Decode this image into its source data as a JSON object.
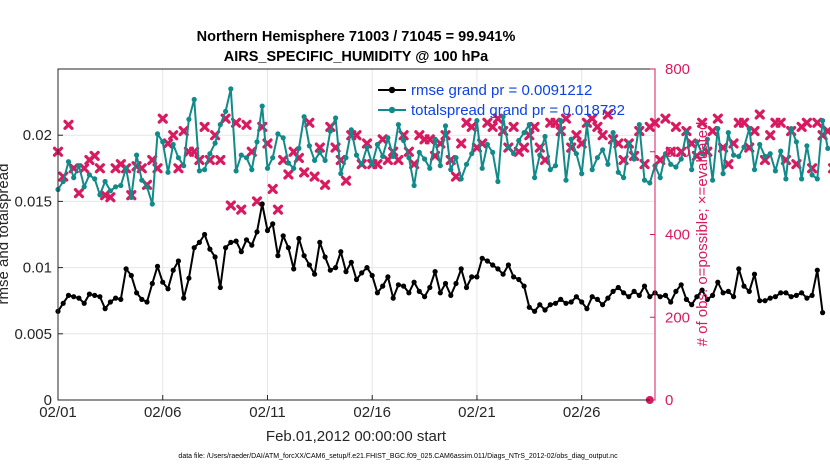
{
  "chart_data": {
    "type": "line",
    "title": "Northern Hemisphere 71003 / 71045 = 99.941%",
    "subtitle": "AIRS_SPECIFIC_HUMIDITY @ 100 hPa",
    "xlabel": "Feb.01,2012 00:00:00 start",
    "ylabel": "rmse and totalspread",
    "ylabel_right": "# of obs: o=possible; ×=evaluated",
    "footer": "data file: /Users/raeder/DAI/ATM_forcXX/CAM6_setup/f.e21.FHIST_BGC.f09_025.CAM6assim.011/Diags_NTrS_2012-02/obs_diag_output.nc",
    "xlim": [
      0,
      28.5
    ],
    "ylim": [
      0,
      0.025
    ],
    "ylim_right": [
      0,
      800
    ],
    "x_ticks": [
      0,
      5,
      10,
      15,
      20,
      25
    ],
    "x_tick_labels": [
      "02/01",
      "02/06",
      "02/11",
      "02/16",
      "02/21",
      "02/26"
    ],
    "y_ticks": [
      0,
      0.005,
      0.01,
      0.015,
      0.02
    ],
    "y_tick_labels": [
      "0",
      "0.005",
      "0.01",
      "0.015",
      "0.02"
    ],
    "y_right_ticks": [
      0,
      200,
      400,
      600,
      800
    ],
    "y_right_tick_labels": [
      "0",
      "200",
      "400",
      "600",
      "800"
    ],
    "series": [
      {
        "name": "rmse grand pr = 0.0091212",
        "color": "#000000",
        "marker": "circle",
        "axis": "left",
        "x_start": 0,
        "x_step": 0.25,
        "values": [
          0.0067,
          0.0073,
          0.0079,
          0.0078,
          0.0077,
          0.0073,
          0.008,
          0.0079,
          0.0078,
          0.0069,
          0.0074,
          0.0077,
          0.0076,
          0.0099,
          0.0094,
          0.0081,
          0.0076,
          0.0074,
          0.0088,
          0.0101,
          0.0089,
          0.0084,
          0.0098,
          0.0105,
          0.0077,
          0.0092,
          0.0115,
          0.0119,
          0.0125,
          0.0114,
          0.0108,
          0.0085,
          0.0115,
          0.0119,
          0.012,
          0.0112,
          0.0121,
          0.0117,
          0.0127,
          0.0148,
          0.0128,
          0.0133,
          0.0109,
          0.0124,
          0.0115,
          0.0099,
          0.0122,
          0.0109,
          0.0102,
          0.0095,
          0.0119,
          0.0108,
          0.0098,
          0.01,
          0.0112,
          0.0097,
          0.0104,
          0.0091,
          0.0096,
          0.01,
          0.0094,
          0.0081,
          0.0086,
          0.0093,
          0.0077,
          0.0087,
          0.0086,
          0.0081,
          0.0089,
          0.0082,
          0.0078,
          0.0085,
          0.0097,
          0.0081,
          0.0088,
          0.0079,
          0.0088,
          0.0099,
          0.0085,
          0.0093,
          0.0093,
          0.0107,
          0.0105,
          0.0102,
          0.0099,
          0.0095,
          0.0102,
          0.0093,
          0.0091,
          0.0086,
          0.007,
          0.0067,
          0.0072,
          0.0068,
          0.0072,
          0.0073,
          0.0076,
          0.0073,
          0.0074,
          0.0078,
          0.0074,
          0.0069,
          0.0078,
          0.0076,
          0.0072,
          0.0077,
          0.0082,
          0.0085,
          0.0081,
          0.0078,
          0.0082,
          0.0079,
          0.0086,
          0.0078,
          0.0081,
          0.0078,
          0.0079,
          0.0074,
          0.0082,
          0.0087,
          0.0076,
          0.0072,
          0.0078,
          0.0083,
          0.0076,
          0.0079,
          0.0089,
          0.0081,
          0.0082,
          0.0078,
          0.0099,
          0.0086,
          0.0082,
          0.0095,
          0.0075,
          0.0075,
          0.0077,
          0.0078,
          0.0081,
          0.0081,
          0.0078,
          0.0079,
          0.0081,
          0.0077,
          0.0079,
          0.0098,
          0.0066
        ]
      },
      {
        "name": "totalspread grand pr = 0.018732",
        "color": "#138a8a",
        "marker": "circle",
        "axis": "left",
        "x_start": 0,
        "x_step": 0.25,
        "values": [
          0.0159,
          0.0165,
          0.018,
          0.0168,
          0.0177,
          0.0161,
          0.017,
          0.0167,
          0.0155,
          0.0165,
          0.0158,
          0.0161,
          0.0162,
          0.0175,
          0.0153,
          0.0185,
          0.0166,
          0.0161,
          0.0148,
          0.0201,
          0.0195,
          0.0172,
          0.0193,
          0.0183,
          0.0177,
          0.0212,
          0.0227,
          0.0173,
          0.0174,
          0.0186,
          0.0194,
          0.0208,
          0.0218,
          0.0235,
          0.0173,
          0.0185,
          0.0183,
          0.0174,
          0.0195,
          0.0222,
          0.0175,
          0.0183,
          0.0201,
          0.0198,
          0.0179,
          0.0175,
          0.019,
          0.0214,
          0.0192,
          0.0181,
          0.0187,
          0.0181,
          0.0203,
          0.0213,
          0.0171,
          0.0183,
          0.0204,
          0.0185,
          0.0178,
          0.0191,
          0.0178,
          0.0193,
          0.0184,
          0.0198,
          0.0184,
          0.0208,
          0.0196,
          0.0183,
          0.0162,
          0.0187,
          0.0182,
          0.0175,
          0.0197,
          0.0177,
          0.0207,
          0.0174,
          0.0183,
          0.0167,
          0.0178,
          0.0186,
          0.0211,
          0.0175,
          0.0193,
          0.0187,
          0.0165,
          0.0214,
          0.0191,
          0.0186,
          0.0196,
          0.0202,
          0.0208,
          0.0168,
          0.0185,
          0.0199,
          0.0174,
          0.0177,
          0.0211,
          0.0166,
          0.0197,
          0.0186,
          0.0171,
          0.0208,
          0.0174,
          0.0183,
          0.0189,
          0.0178,
          0.0202,
          0.0172,
          0.0168,
          0.0194,
          0.0182,
          0.0208,
          0.0166,
          0.0164,
          0.0177,
          0.0168,
          0.0186,
          0.0178,
          0.0176,
          0.0182,
          0.0202,
          0.0174,
          0.0195,
          0.0186,
          0.0197,
          0.0166,
          0.0205,
          0.0171,
          0.0202,
          0.0185,
          0.0184,
          0.0191,
          0.0205,
          0.0174,
          0.0193,
          0.0184,
          0.0186,
          0.0173,
          0.0188,
          0.0167,
          0.0205,
          0.0195,
          0.0167,
          0.0192,
          0.017,
          0.0167,
          0.0211,
          0.019
        ]
      }
    ],
    "obs_evaluated": {
      "name": "# evaluated",
      "color": "#d81b60",
      "marker": "x",
      "axis": "right",
      "x_start": 0,
      "x_step": 0.25,
      "values": [
        600,
        540,
        665,
        560,
        500,
        560,
        580,
        590,
        560,
        495,
        490,
        560,
        570,
        560,
        495,
        565,
        560,
        520,
        580,
        560,
        680,
        620,
        640,
        560,
        650,
        600,
        600,
        580,
        660,
        580,
        640,
        580,
        680,
        470,
        670,
        460,
        665,
        600,
        480,
        660,
        620,
        510,
        460,
        580,
        545,
        600,
        585,
        550,
        670,
        540,
        610,
        520,
        660,
        610,
        580,
        530,
        640,
        640,
        570,
        620,
        570,
        570,
        630,
        580,
        600,
        580,
        640,
        600,
        570,
        640,
        630,
        630,
        590,
        620,
        640,
        580,
        540,
        620,
        670,
        660,
        610,
        620,
        670,
        660,
        680,
        650,
        610,
        660,
        600,
        610,
        640,
        660,
        610,
        580,
        670,
        670,
        650,
        680,
        610,
        640,
        620,
        670,
        680,
        660,
        640,
        690,
        630,
        620,
        580,
        620,
        590,
        650,
        570,
        660,
        670,
        580,
        680,
        600,
        660,
        600,
        650,
        620,
        590,
        670,
        600,
        650,
        680,
        610,
        570,
        620,
        670,
        670,
        610,
        650,
        690,
        580,
        640,
        670,
        670,
        580,
        650,
        570,
        660,
        670,
        560,
        670,
        640,
        650,
        560
      ]
    },
    "obs_possible_marker": {
      "x": 28.25,
      "value": 0,
      "color": "#d81b60"
    }
  }
}
